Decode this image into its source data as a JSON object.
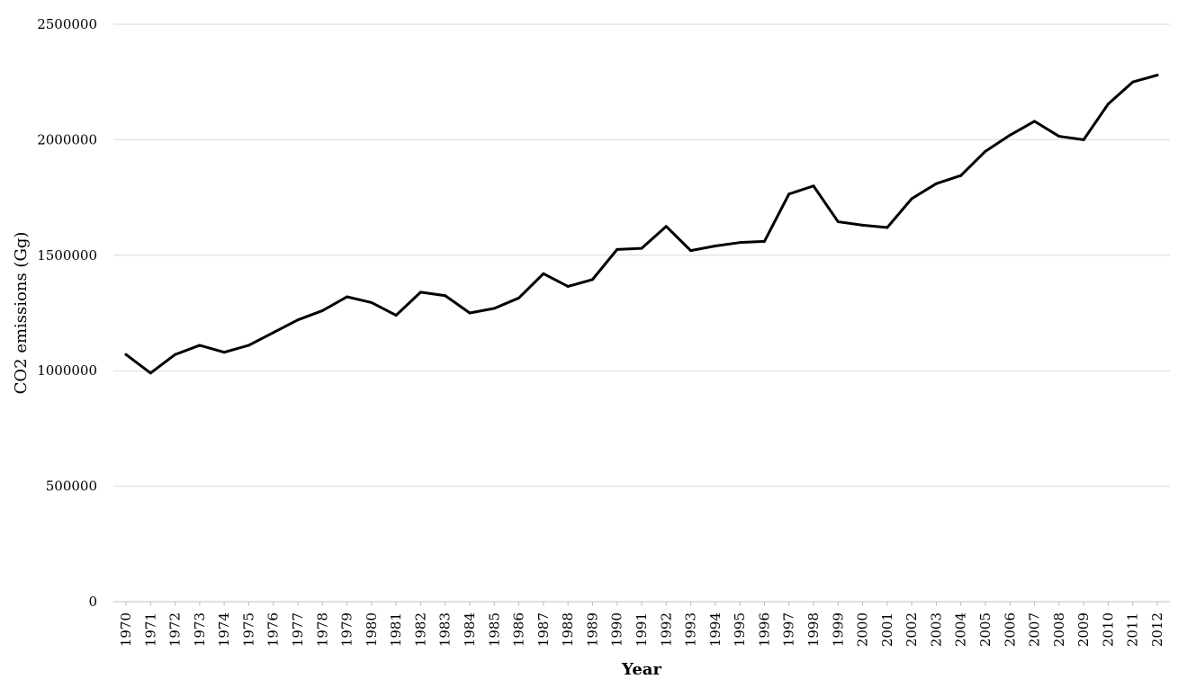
{
  "chart_data": {
    "type": "line",
    "title": "",
    "xlabel": "Year",
    "ylabel": "CO2 emissions (Gg)",
    "ylim": [
      0,
      2500000
    ],
    "yticks": [
      0,
      500000,
      1000000,
      1500000,
      2000000,
      2500000
    ],
    "ytick_labels": [
      "0",
      "500000",
      "1000000",
      "1500000",
      "2000000",
      "2500000"
    ],
    "grid": "horizontal",
    "legend": "none",
    "line_color": "#000000",
    "grid_color": "#d9d9d9",
    "categories": [
      "1970",
      "1971",
      "1972",
      "1973",
      "1974",
      "1975",
      "1976",
      "1977",
      "1978",
      "1979",
      "1980",
      "1981",
      "1982",
      "1983",
      "1984",
      "1985",
      "1986",
      "1987",
      "1988",
      "1989",
      "1990",
      "1991",
      "1992",
      "1993",
      "1994",
      "1995",
      "1996",
      "1997",
      "1998",
      "1999",
      "2000",
      "2001",
      "2002",
      "2003",
      "2004",
      "2005",
      "2006",
      "2007",
      "2008",
      "2009",
      "2010",
      "2011",
      "2012"
    ],
    "series": [
      {
        "values": [
          1070000,
          990000,
          1070000,
          1110000,
          1080000,
          1110000,
          1165000,
          1220000,
          1260000,
          1320000,
          1295000,
          1240000,
          1340000,
          1325000,
          1250000,
          1270000,
          1315000,
          1420000,
          1365000,
          1395000,
          1525000,
          1530000,
          1625000,
          1520000,
          1540000,
          1555000,
          1560000,
          1765000,
          1800000,
          1645000,
          1630000,
          1620000,
          1745000,
          1810000,
          1845000,
          1950000,
          2020000,
          2080000,
          2015000,
          2000000,
          2155000,
          2250000,
          2280000
        ]
      }
    ]
  }
}
